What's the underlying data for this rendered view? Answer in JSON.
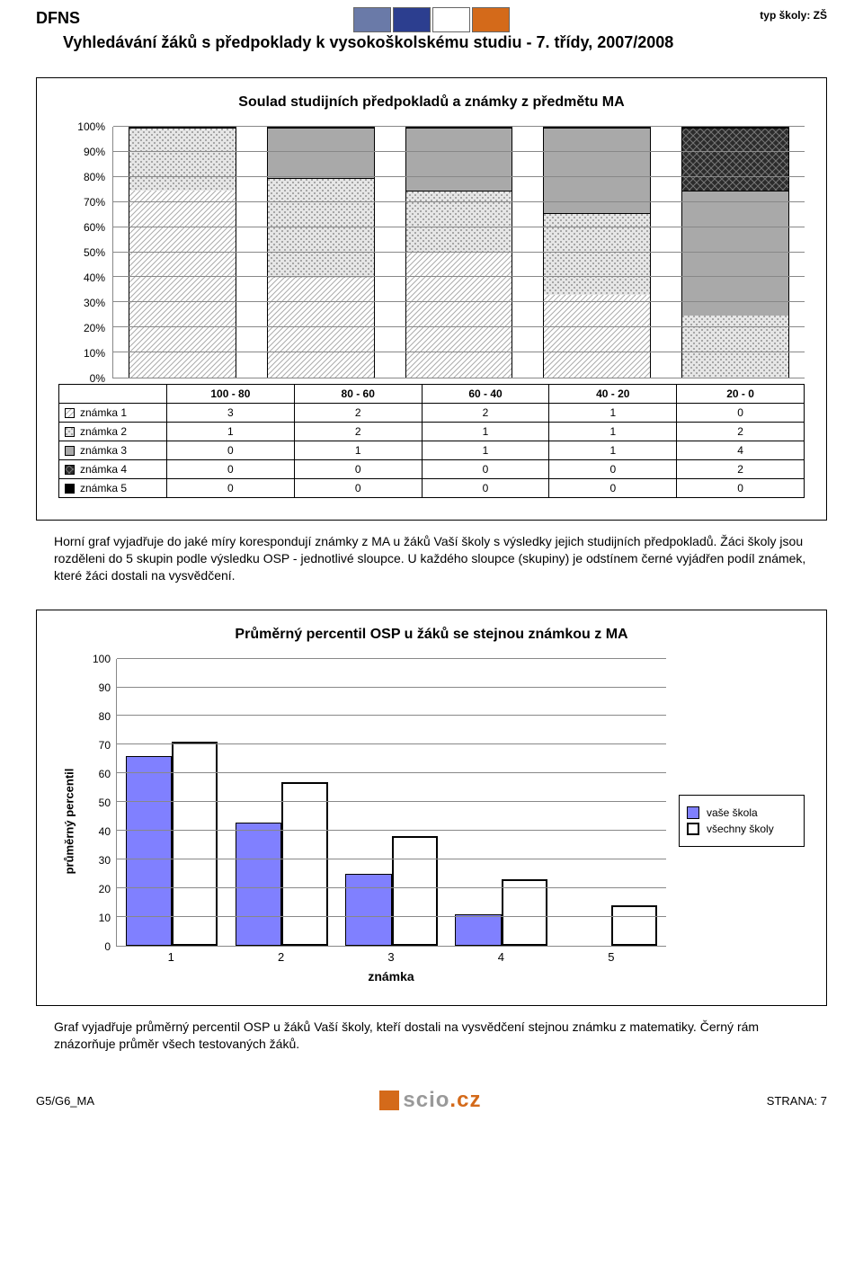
{
  "header": {
    "code": "DFNS",
    "typ_label": "typ školy:",
    "typ_value": "ZŠ",
    "title": "Vyhledávání žáků s předpoklady k vysokoškolskému studiu - 7. třídy, 2007/2008",
    "flag_colors": [
      "#6a7aa8",
      "#2c3e8f",
      "#ffffff",
      "#d46a1a"
    ]
  },
  "chart1": {
    "title": "Soulad studijních předpokladů a známky z předmětu MA",
    "ylim": [
      0,
      100
    ],
    "ytick_step": 10,
    "ytick_suffix": "%",
    "categories": [
      "100 - 80",
      "80 - 60",
      "60 - 40",
      "40 - 20",
      "20 - 0"
    ],
    "series": [
      {
        "label": "známka 1",
        "pattern": "pat-diag-light",
        "cells": [
          "3",
          "2",
          "2",
          "1",
          "0"
        ]
      },
      {
        "label": "známka 2",
        "pattern": "pat-dots",
        "cells": [
          "1",
          "2",
          "1",
          "1",
          "2"
        ]
      },
      {
        "label": "známka 3",
        "pattern": "pat-gray",
        "cells": [
          "0",
          "1",
          "1",
          "1",
          "4"
        ]
      },
      {
        "label": "známka 4",
        "pattern": "pat-darkdiamond",
        "cells": [
          "0",
          "0",
          "0",
          "0",
          "2"
        ]
      },
      {
        "label": "známka 5",
        "pattern": "pat-black",
        "cells": [
          "0",
          "0",
          "0",
          "0",
          "0"
        ]
      }
    ],
    "stacks_pct": [
      [
        75,
        25,
        0,
        0,
        0
      ],
      [
        40,
        40,
        20,
        0,
        0
      ],
      [
        50,
        25,
        25,
        0,
        0
      ],
      [
        33,
        33,
        34,
        0,
        0
      ],
      [
        0,
        25,
        50,
        25,
        0
      ]
    ],
    "gridline_color": "#888888"
  },
  "para1": "Horní graf vyjadřuje do jaké míry korespondují známky z MA u žáků Vaší školy s výsledky jejich studijních předpokladů. Žáci školy jsou rozděleni do 5 skupin podle výsledku OSP - jednotlivé sloupce. U každého sloupce (skupiny) je odstínem černé vyjádřen podíl známek, které žáci dostali na vysvědčení.",
  "chart2": {
    "title": "Průměrný percentil OSP u žáků se stejnou známkou z MA",
    "ylabel": "průměrný percentil",
    "xlabel": "známka",
    "ylim": [
      0,
      100
    ],
    "ytick_step": 10,
    "categories": [
      "1",
      "2",
      "3",
      "4",
      "5"
    ],
    "series_fill_color": "#8080ff",
    "series": [
      {
        "label": "vaše škola",
        "type": "fill",
        "values": [
          66,
          43,
          25,
          11,
          0
        ]
      },
      {
        "label": "všechny školy",
        "type": "frame",
        "values": [
          71,
          57,
          38,
          23,
          14
        ]
      }
    ],
    "gridline_color": "#888888"
  },
  "para2": "Graf vyjadřuje průměrný percentil OSP u žáků Vaší školy, kteří dostali na vysvědčení stejnou známku z matematiky. Černý rám znázorňuje průměr všech testovaných žáků.",
  "footer": {
    "left": "G5/G6_MA",
    "right": "STRANA: 7",
    "logo_text": "scio",
    "logo_suffix": ".cz",
    "logo_orange": "#d46a1a",
    "logo_gray": "#999999"
  }
}
